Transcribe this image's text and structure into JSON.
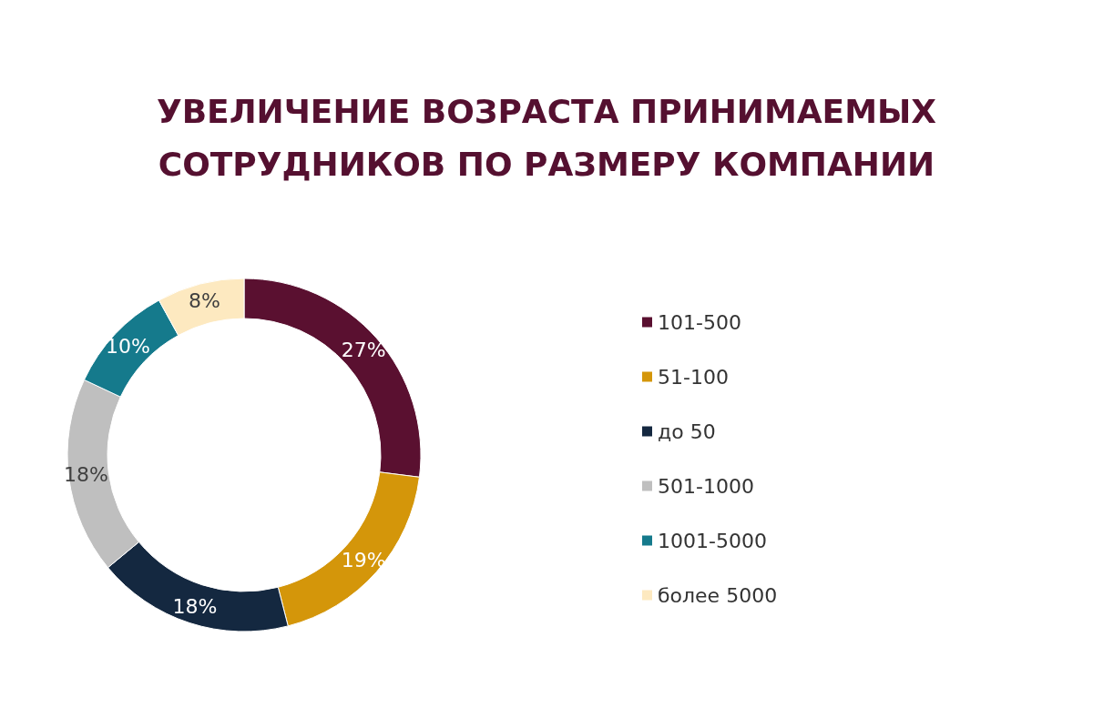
{
  "chart_data": {
    "type": "donut",
    "title": "УВЕЛИЧЕНИЕ ВОЗРАСТА ПРИНИМАЕМЫХ СОТРУДНИКОВ ПО РАЗМЕРУ КОМПАНИИ",
    "categories": [
      "101-500",
      "51-100",
      "до 50",
      "501-1000",
      "1001-5000",
      "более 5000"
    ],
    "values": [
      27,
      19,
      18,
      18,
      10,
      8
    ],
    "colors": [
      "#5a1030",
      "#d4960a",
      "#142840",
      "#bfbfbf",
      "#157a8c",
      "#fde9c0"
    ],
    "value_labels": [
      "27%",
      "19%",
      "18%",
      "18%",
      "10%",
      "8%"
    ],
    "legend": "right"
  }
}
